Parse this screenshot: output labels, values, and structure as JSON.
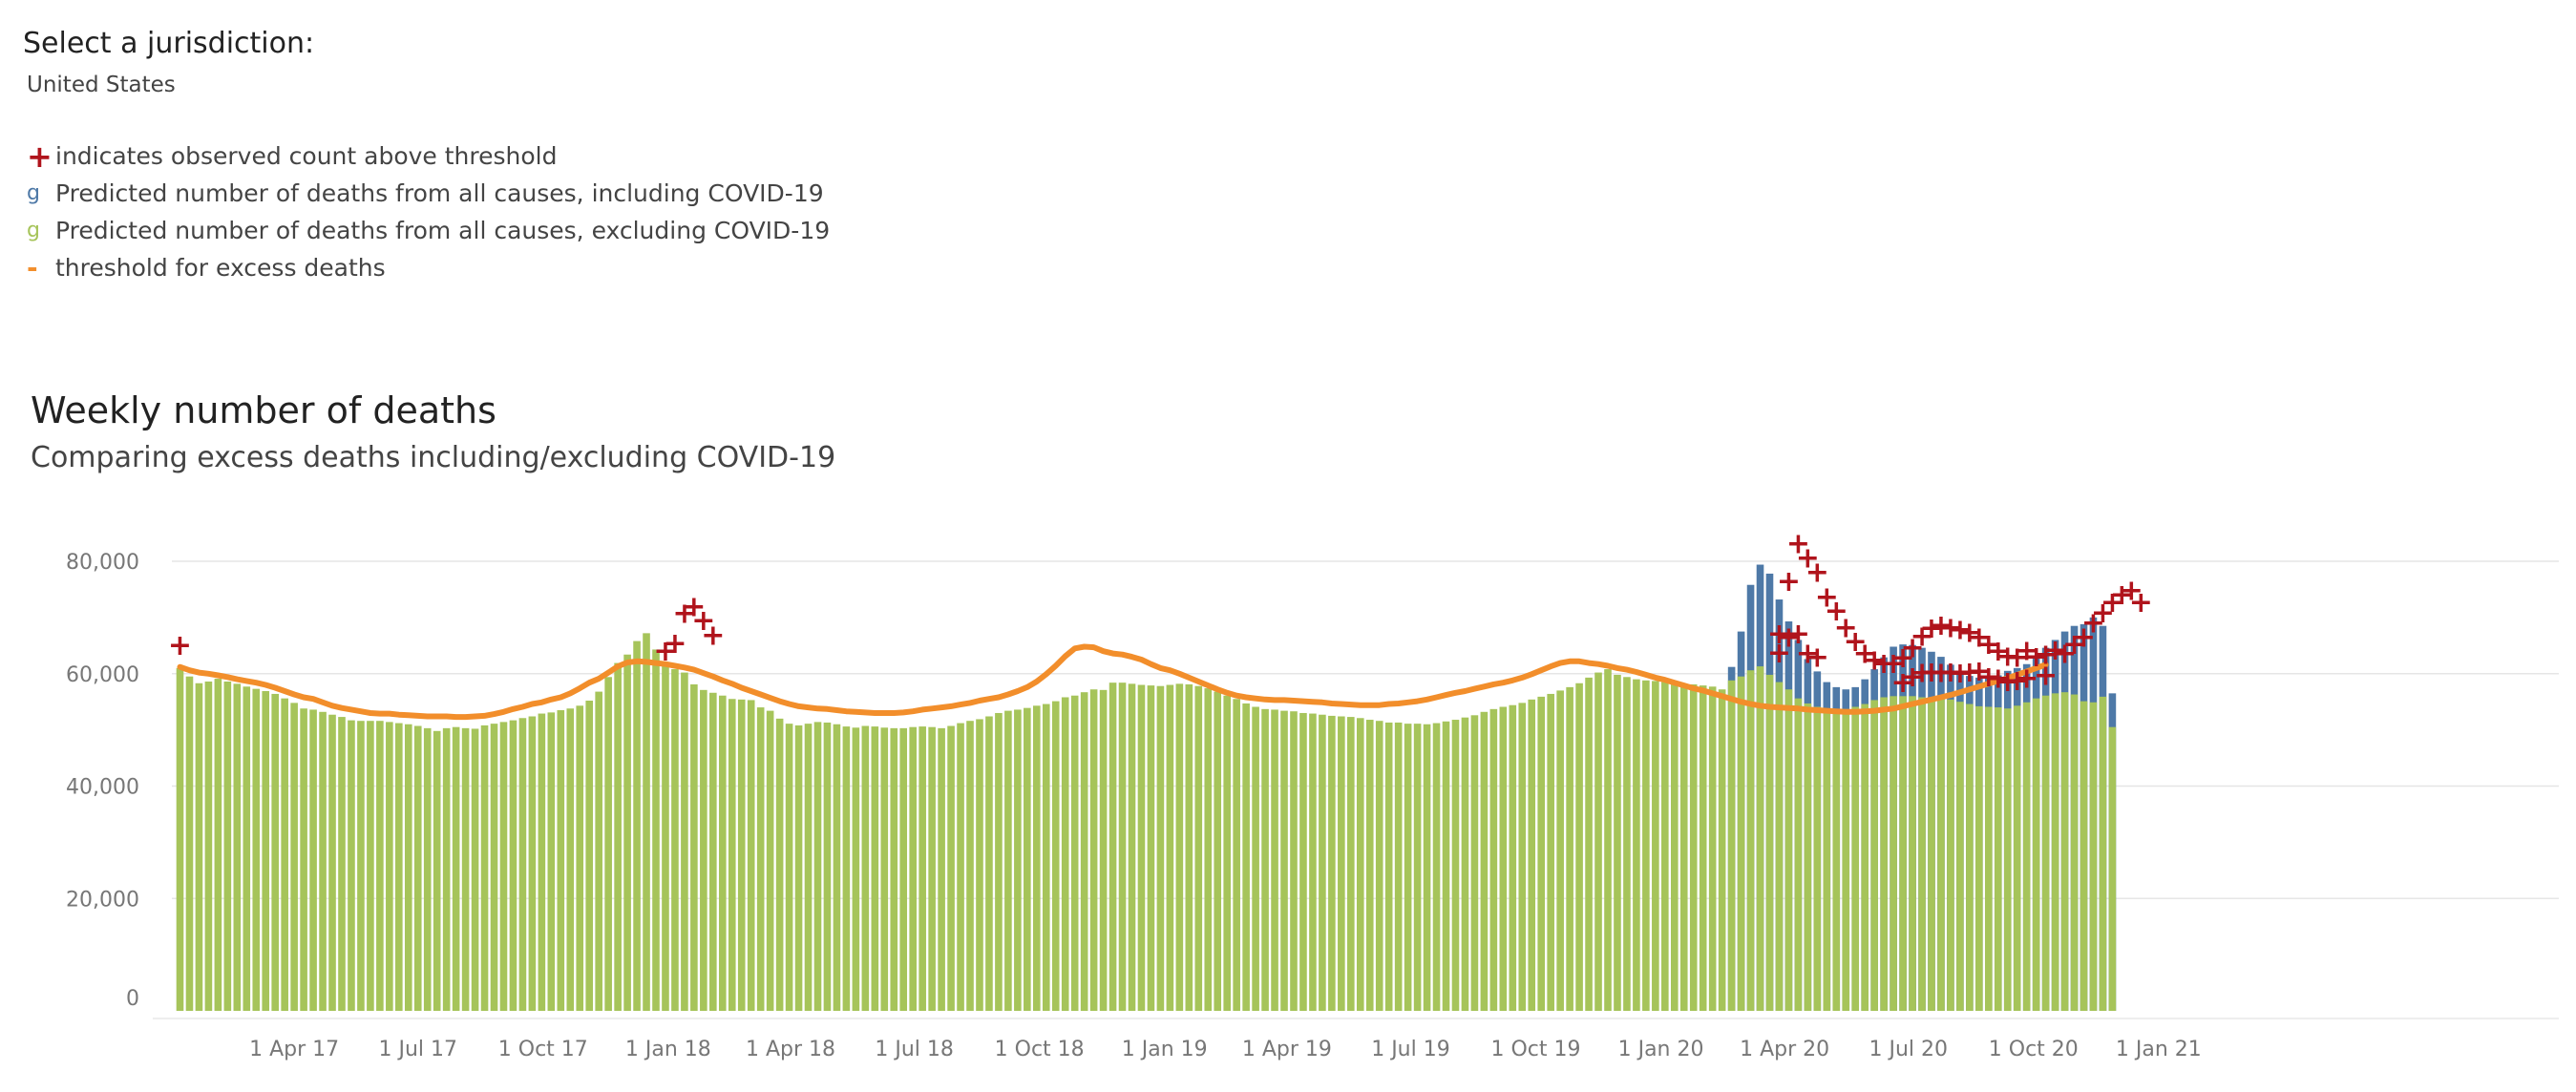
{
  "jurisdiction": {
    "label": "Select a jurisdiction:",
    "value": "United States"
  },
  "legend": [
    {
      "symbol": "+",
      "icon": "plus-icon",
      "color": "#b0141c",
      "label": "indicates observed count above threshold"
    },
    {
      "symbol": "g",
      "icon": "blue-glyph-icon",
      "color": "#4e79a7",
      "label": "Predicted number of deaths from all causes, including COVID-19"
    },
    {
      "symbol": "g",
      "icon": "green-glyph-icon",
      "color": "#a6c45a",
      "label": "Predicted number of deaths from all causes, excluding COVID-19"
    },
    {
      "symbol": "-",
      "icon": "dash-icon",
      "color": "#f28e2b",
      "label": "threshold for excess deaths"
    }
  ],
  "colors": {
    "including": "#4e79a7",
    "excluding": "#a6c45a",
    "threshold": "#f28e2b",
    "marker": "#b0141c",
    "grid": "#e6e6e6"
  },
  "chart_data": {
    "type": "bar",
    "title": "Weekly number of deaths",
    "subtitle": "Comparing excess deaths including/excluding COVID-19",
    "x_start": "2017-01-07",
    "x_interval_days": 7,
    "ylim": [
      0,
      80000
    ],
    "yticks": [
      0,
      20000,
      40000,
      60000,
      80000
    ],
    "ytick_labels": [
      "0",
      "20,000",
      "40,000",
      "60,000",
      "80,000"
    ],
    "xtick_labels": [
      "1 Apr 17",
      "1 Jul 17",
      "1 Oct 17",
      "1 Jan 18",
      "1 Apr 18",
      "1 Jul 18",
      "1 Oct 18",
      "1 Jan 19",
      "1 Apr 19",
      "1 Jul 19",
      "1 Oct 19",
      "1 Jan 20",
      "1 Apr 20",
      "1 Jul 20",
      "1 Oct 20",
      "1 Jan 21"
    ],
    "xtick_dates": [
      "2017-04-01",
      "2017-07-01",
      "2017-10-01",
      "2018-01-01",
      "2018-04-01",
      "2018-07-01",
      "2018-10-01",
      "2019-01-01",
      "2019-04-01",
      "2019-07-01",
      "2019-10-01",
      "2020-01-01",
      "2020-04-01",
      "2020-07-01",
      "2020-10-01",
      "2021-01-01"
    ],
    "grid": true,
    "series": [
      {
        "name": "Predicted number of deaths from all causes, excluding COVID-19",
        "values": [
          61000,
          59500,
          58300,
          58600,
          59100,
          58600,
          58200,
          57700,
          57300,
          56900,
          56400,
          55600,
          54800,
          53800,
          53600,
          53200,
          52700,
          52300,
          51700,
          51600,
          51600,
          51600,
          51400,
          51200,
          51000,
          50700,
          50300,
          49800,
          50300,
          50500,
          50300,
          50200,
          50800,
          51100,
          51400,
          51700,
          52100,
          52400,
          52900,
          53100,
          53500,
          53800,
          54300,
          55200,
          56800,
          59400,
          61900,
          63400,
          65800,
          67200,
          64300,
          61800,
          60800,
          60200,
          58100,
          57100,
          56600,
          56100,
          55500,
          55400,
          55300,
          54000,
          53400,
          52000,
          51100,
          50800,
          51100,
          51400,
          51300,
          51000,
          50600,
          50400,
          50700,
          50600,
          50400,
          50300,
          50300,
          50500,
          50600,
          50500,
          50300,
          50700,
          51200,
          51600,
          51900,
          52400,
          53000,
          53400,
          53600,
          53900,
          54300,
          54600,
          55100,
          55800,
          56100,
          56700,
          57200,
          57100,
          58400,
          58400,
          58200,
          58000,
          57900,
          57800,
          58000,
          58200,
          58100,
          57800,
          57400,
          56800,
          56100,
          55500,
          54700,
          54100,
          53700,
          53600,
          53400,
          53300,
          53000,
          52900,
          52700,
          52500,
          52400,
          52300,
          52100,
          51800,
          51600,
          51300,
          51300,
          51100,
          51100,
          51000,
          51200,
          51500,
          51800,
          52200,
          52600,
          53200,
          53700,
          54100,
          54400,
          54800,
          55400,
          55900,
          56400,
          57000,
          57600,
          58300,
          59300,
          60200,
          60800,
          59800,
          59400,
          59000,
          58800,
          58700,
          58500,
          58400,
          58200,
          58100,
          57900,
          57700,
          57200,
          58800,
          59500,
          60600,
          61300,
          59800,
          58500,
          57200,
          55600,
          54700,
          54100,
          53600,
          53400,
          53700,
          54100,
          54600,
          55300,
          55800,
          56000,
          56000,
          56000,
          55800,
          55700,
          55500,
          55400,
          55000,
          54600,
          54200,
          54100,
          54000,
          53800,
          54300,
          54900,
          55600,
          56100,
          56500,
          56700,
          56300,
          55100,
          54900,
          55900,
          50500
        ]
      },
      {
        "name": "Predicted number of deaths from all causes, including COVID-19",
        "values": [
          61000,
          59500,
          58300,
          58600,
          59100,
          58600,
          58200,
          57700,
          57300,
          56900,
          56400,
          55600,
          54800,
          53800,
          53600,
          53200,
          52700,
          52300,
          51700,
          51600,
          51600,
          51600,
          51400,
          51200,
          51000,
          50700,
          50300,
          49800,
          50300,
          50500,
          50300,
          50200,
          50800,
          51100,
          51400,
          51700,
          52100,
          52400,
          52900,
          53100,
          53500,
          53800,
          54300,
          55200,
          56800,
          59400,
          61900,
          63400,
          65800,
          67200,
          64300,
          61800,
          60800,
          60200,
          58100,
          57100,
          56600,
          56100,
          55500,
          55400,
          55300,
          54000,
          53400,
          52000,
          51100,
          50800,
          51100,
          51400,
          51300,
          51000,
          50600,
          50400,
          50700,
          50600,
          50400,
          50300,
          50300,
          50500,
          50600,
          50500,
          50300,
          50700,
          51200,
          51600,
          51900,
          52400,
          53000,
          53400,
          53600,
          53900,
          54300,
          54600,
          55100,
          55800,
          56100,
          56700,
          57200,
          57100,
          58400,
          58400,
          58200,
          58000,
          57900,
          57800,
          58000,
          58200,
          58100,
          57800,
          57400,
          56800,
          56100,
          55500,
          54700,
          54100,
          53700,
          53600,
          53400,
          53300,
          53000,
          52900,
          52700,
          52500,
          52400,
          52300,
          52100,
          51800,
          51600,
          51300,
          51300,
          51100,
          51100,
          51000,
          51200,
          51500,
          51800,
          52200,
          52600,
          53200,
          53700,
          54100,
          54400,
          54800,
          55400,
          55900,
          56400,
          57000,
          57600,
          58300,
          59300,
          60200,
          60800,
          59800,
          59400,
          59000,
          58800,
          58700,
          58500,
          58400,
          58200,
          58100,
          57900,
          57700,
          57200,
          61200,
          67500,
          75800,
          79400,
          77800,
          73200,
          69300,
          66000,
          62600,
          60400,
          58500,
          57600,
          57200,
          57600,
          59000,
          60800,
          62900,
          64800,
          65200,
          65100,
          64600,
          63900,
          63000,
          61600,
          60300,
          59600,
          59300,
          59200,
          59700,
          60500,
          61000,
          61700,
          62900,
          64600,
          66000,
          67500,
          68500,
          68800,
          70000,
          68500,
          56500
        ]
      }
    ],
    "threshold": [
      61200,
      60600,
      60200,
      60000,
      59700,
      59400,
      59000,
      58700,
      58400,
      58000,
      57500,
      56900,
      56300,
      55800,
      55500,
      54900,
      54300,
      53900,
      53600,
      53300,
      53000,
      52900,
      52900,
      52700,
      52600,
      52500,
      52400,
      52400,
      52400,
      52300,
      52300,
      52400,
      52500,
      52800,
      53200,
      53700,
      54100,
      54600,
      54900,
      55400,
      55800,
      56500,
      57400,
      58400,
      59100,
      60200,
      61300,
      62000,
      62200,
      62100,
      61900,
      61700,
      61400,
      61100,
      60700,
      60100,
      59500,
      58800,
      58200,
      57500,
      56900,
      56300,
      55700,
      55100,
      54600,
      54200,
      54000,
      53800,
      53700,
      53500,
      53300,
      53200,
      53100,
      53000,
      53000,
      53000,
      53100,
      53300,
      53600,
      53800,
      54000,
      54200,
      54500,
      54800,
      55200,
      55500,
      55800,
      56300,
      56900,
      57600,
      58600,
      59900,
      61400,
      63100,
      64500,
      64800,
      64700,
      64000,
      63600,
      63400,
      63000,
      62500,
      61700,
      61000,
      60600,
      60000,
      59300,
      58600,
      57900,
      57200,
      56600,
      56100,
      55800,
      55600,
      55400,
      55300,
      55300,
      55200,
      55100,
      55000,
      54900,
      54700,
      54600,
      54500,
      54400,
      54400,
      54400,
      54600,
      54700,
      54900,
      55100,
      55400,
      55800,
      56200,
      56600,
      56900,
      57300,
      57700,
      58100,
      58400,
      58800,
      59300,
      59900,
      60600,
      61300,
      61900,
      62200,
      62200,
      61900,
      61700,
      61400,
      61000,
      60700,
      60300,
      59800,
      59300,
      58900,
      58400,
      57900,
      57400,
      57000,
      56500,
      56000,
      55500,
      55000,
      54600,
      54300,
      54100,
      54000,
      53900,
      53800,
      53600,
      53500,
      53400,
      53300,
      53200,
      53200,
      53300,
      53400,
      53600,
      53800,
      54200,
      54600,
      55000,
      55400,
      55800,
      56200,
      56700,
      57200,
      57700,
      58200,
      58700,
      59200,
      59800,
      60400,
      61000,
      61600
    ],
    "above_threshold_markers": [
      {
        "x": "2017-01-07",
        "y": 65200
      },
      {
        "x": "2017-12-30",
        "y": 64200
      },
      {
        "x": "2018-01-06",
        "y": 65600
      },
      {
        "x": "2018-01-13",
        "y": 70900
      },
      {
        "x": "2018-01-20",
        "y": 72100
      },
      {
        "x": "2018-01-27",
        "y": 69600
      },
      {
        "x": "2018-02-03",
        "y": 67000
      },
      {
        "x": "2020-03-28",
        "y": 67300
      },
      {
        "x": "2020-03-28",
        "y": 63900
      },
      {
        "x": "2020-04-04",
        "y": 76600
      },
      {
        "x": "2020-04-04",
        "y": 66700
      },
      {
        "x": "2020-04-11",
        "y": 83300
      },
      {
        "x": "2020-04-11",
        "y": 67300
      },
      {
        "x": "2020-04-18",
        "y": 80800
      },
      {
        "x": "2020-04-18",
        "y": 63800
      },
      {
        "x": "2020-04-25",
        "y": 78200
      },
      {
        "x": "2020-04-25",
        "y": 63100
      },
      {
        "x": "2020-05-02",
        "y": 73800
      },
      {
        "x": "2020-05-09",
        "y": 71300
      },
      {
        "x": "2020-05-16",
        "y": 68400
      },
      {
        "x": "2020-05-23",
        "y": 65900
      },
      {
        "x": "2020-05-30",
        "y": 63800
      },
      {
        "x": "2020-06-06",
        "y": 62600
      },
      {
        "x": "2020-06-13",
        "y": 62000
      },
      {
        "x": "2020-06-20",
        "y": 62000
      },
      {
        "x": "2020-06-27",
        "y": 63000
      },
      {
        "x": "2020-06-27",
        "y": 58600
      },
      {
        "x": "2020-07-04",
        "y": 64800
      },
      {
        "x": "2020-07-04",
        "y": 59600
      },
      {
        "x": "2020-07-11",
        "y": 66800
      },
      {
        "x": "2020-07-11",
        "y": 60400
      },
      {
        "x": "2020-07-18",
        "y": 68300
      },
      {
        "x": "2020-07-18",
        "y": 60500
      },
      {
        "x": "2020-07-25",
        "y": 68800
      },
      {
        "x": "2020-07-25",
        "y": 60400
      },
      {
        "x": "2020-08-01",
        "y": 68400
      },
      {
        "x": "2020-08-01",
        "y": 60500
      },
      {
        "x": "2020-08-08",
        "y": 68000
      },
      {
        "x": "2020-08-08",
        "y": 60300
      },
      {
        "x": "2020-08-15",
        "y": 67500
      },
      {
        "x": "2020-08-15",
        "y": 60500
      },
      {
        "x": "2020-08-22",
        "y": 66700
      },
      {
        "x": "2020-08-22",
        "y": 60600
      },
      {
        "x": "2020-08-29",
        "y": 65400
      },
      {
        "x": "2020-08-29",
        "y": 59600
      },
      {
        "x": "2020-09-05",
        "y": 64200
      },
      {
        "x": "2020-09-05",
        "y": 59400
      },
      {
        "x": "2020-09-12",
        "y": 63300
      },
      {
        "x": "2020-09-12",
        "y": 58800
      },
      {
        "x": "2020-09-19",
        "y": 63100
      },
      {
        "x": "2020-09-19",
        "y": 58900
      },
      {
        "x": "2020-09-26",
        "y": 64300
      },
      {
        "x": "2020-09-26",
        "y": 59400
      },
      {
        "x": "2020-10-03",
        "y": 63200
      },
      {
        "x": "2020-10-10",
        "y": 63600
      },
      {
        "x": "2020-10-10",
        "y": 59900
      },
      {
        "x": "2020-10-17",
        "y": 64400
      },
      {
        "x": "2020-10-24",
        "y": 63800
      },
      {
        "x": "2020-10-31",
        "y": 65400
      },
      {
        "x": "2020-11-07",
        "y": 66700
      },
      {
        "x": "2020-11-14",
        "y": 69200
      },
      {
        "x": "2020-11-21",
        "y": 71000
      },
      {
        "x": "2020-11-28",
        "y": 72900
      },
      {
        "x": "2020-12-05",
        "y": 74200
      },
      {
        "x": "2020-12-12",
        "y": 75000
      },
      {
        "x": "2020-12-19",
        "y": 72900
      }
    ]
  }
}
